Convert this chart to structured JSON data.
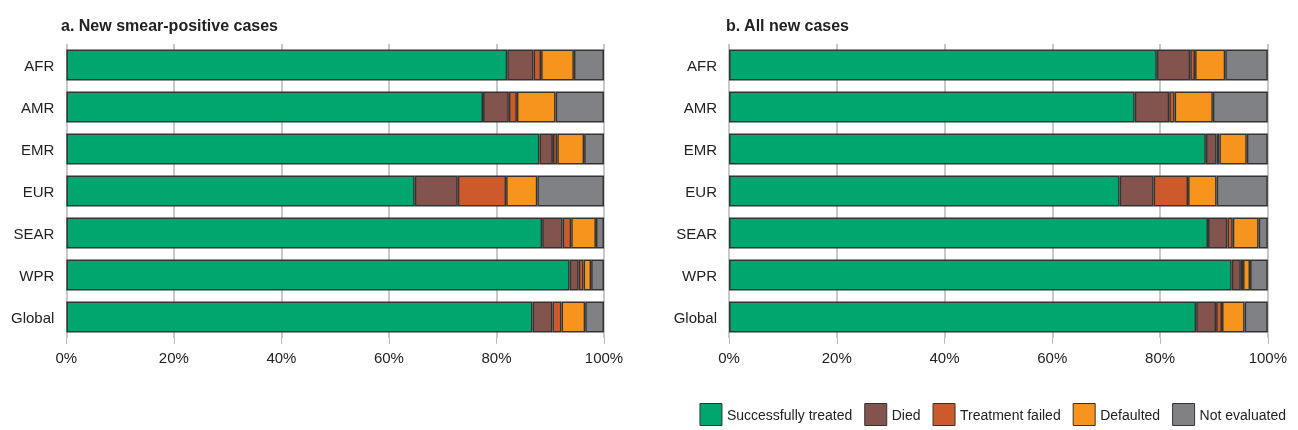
{
  "chart_data": [
    {
      "type": "bar",
      "title": "a. New smear-positive cases",
      "orientation": "horizontal",
      "stacked": true,
      "categories": [
        "AFR",
        "AMR",
        "EMR",
        "EUR",
        "SEAR",
        "WPR",
        "Global"
      ],
      "series": [
        {
          "color": "#00a66e",
          "values": [
            82.0,
            77.5,
            88.0,
            64.8,
            88.5,
            93.6,
            86.7
          ]
        },
        {
          "color": "#83544d",
          "values": [
            4.9,
            4.8,
            2.5,
            8.0,
            3.8,
            1.7,
            3.7
          ]
        },
        {
          "color": "#cc5a2d",
          "values": [
            1.4,
            1.5,
            0.8,
            9.0,
            1.6,
            0.9,
            1.7
          ]
        },
        {
          "color": "#f7941d",
          "values": [
            6.1,
            7.2,
            5.0,
            5.8,
            4.6,
            1.4,
            4.4
          ]
        },
        {
          "color": "#808184",
          "values": [
            5.6,
            9.0,
            3.7,
            12.4,
            1.5,
            2.4,
            3.5
          ]
        }
      ],
      "xlim": [
        0,
        100
      ],
      "xticks": [
        {
          "value": 0,
          "label": "0%"
        },
        {
          "value": 20,
          "label": "20%"
        },
        {
          "value": 40,
          "label": "40%"
        },
        {
          "value": 60,
          "label": "60%"
        },
        {
          "value": 80,
          "label": "80%"
        },
        {
          "value": 100,
          "label": "100%"
        }
      ],
      "grid": "x"
    },
    {
      "type": "bar",
      "title": "b. All new cases",
      "orientation": "horizontal",
      "stacked": true,
      "categories": [
        "AFR",
        "AMR",
        "EMR",
        "EUR",
        "SEAR",
        "WPR",
        "Global"
      ],
      "series": [
        {
          "name": "Successfully treated",
          "color": "#00a66e",
          "values": [
            79.4,
            75.3,
            88.5,
            72.5,
            88.9,
            93.3,
            86.7
          ]
        },
        {
          "name": "Died",
          "color": "#83544d",
          "values": [
            6.2,
            6.4,
            2.0,
            6.3,
            3.6,
            1.7,
            3.7
          ]
        },
        {
          "name": "Treatment failed",
          "color": "#cc5a2d",
          "values": [
            0.9,
            1.0,
            0.5,
            6.4,
            1.0,
            0.4,
            1.1
          ]
        },
        {
          "name": "Defaulted",
          "color": "#f7941d",
          "values": [
            5.6,
            7.1,
            5.1,
            5.3,
            4.8,
            1.3,
            4.2
          ]
        },
        {
          "name": "Not evaluated",
          "color": "#808184",
          "values": [
            7.9,
            10.2,
            3.9,
            9.5,
            1.7,
            3.3,
            4.3
          ]
        }
      ],
      "xlim": [
        0,
        100
      ],
      "xticks": [
        {
          "value": 0,
          "label": "0%"
        },
        {
          "value": 20,
          "label": "20%"
        },
        {
          "value": 40,
          "label": "40%"
        },
        {
          "value": 60,
          "label": "60%"
        },
        {
          "value": 80,
          "label": "80%"
        },
        {
          "value": 100,
          "label": "100%"
        }
      ],
      "grid": "x",
      "legend": "bottom right"
    }
  ]
}
